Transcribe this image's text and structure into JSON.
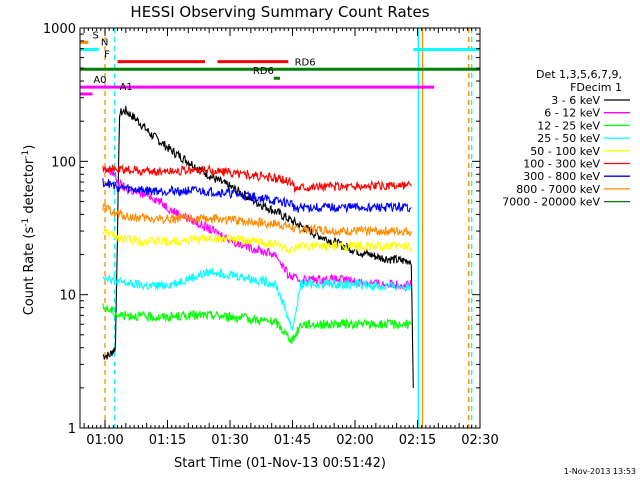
{
  "chart_data": {
    "type": "line",
    "title": "HESSI Observing Summary Count Rates",
    "xlabel": "Start Time (01-Nov-13 00:51:42)",
    "ylabel_main": "Count Rate (s",
    "ylabel_sup1": "-1",
    "ylabel_mid": " detector",
    "ylabel_sup2": "-1",
    "ylabel_end": ")",
    "yscale": "log",
    "ylim": [
      1,
      1000
    ],
    "xlim_minutes": [
      3,
      99
    ],
    "y_ticks": [
      "1",
      "10",
      "100",
      "1000"
    ],
    "x_ticks": [
      {
        "m": 9,
        "label": "01:00"
      },
      {
        "m": 24,
        "label": "01:15"
      },
      {
        "m": 39,
        "label": "01:30"
      },
      {
        "m": 54,
        "label": "01:45"
      },
      {
        "m": 69,
        "label": "02:00"
      },
      {
        "m": 84,
        "label": "02:15"
      },
      {
        "m": 99,
        "label": "02:30"
      }
    ],
    "legend_header": [
      "Det 1,3,5,6,7,9,",
      "FDecim 1"
    ],
    "series": [
      {
        "name": "3 - 6 keV",
        "color": "#000000",
        "points": [
          [
            8.5,
            3.5
          ],
          [
            10,
            3.5
          ],
          [
            11.5,
            4
          ],
          [
            12.5,
            230
          ],
          [
            14,
            240
          ],
          [
            17,
            200
          ],
          [
            20,
            160
          ],
          [
            25,
            120
          ],
          [
            30,
            95
          ],
          [
            35,
            75
          ],
          [
            40,
            62
          ],
          [
            45,
            50
          ],
          [
            50,
            42
          ],
          [
            55,
            34
          ],
          [
            60,
            28
          ],
          [
            65,
            24
          ],
          [
            70,
            21
          ],
          [
            75,
            19
          ],
          [
            80,
            18
          ],
          [
            82.5,
            18
          ],
          [
            83,
            2
          ]
        ]
      },
      {
        "name": "6 - 12 keV",
        "color": "#ff00ff",
        "points": [
          [
            8.5,
            85
          ],
          [
            11,
            82
          ],
          [
            12,
            70
          ],
          [
            14,
            62
          ],
          [
            17,
            58
          ],
          [
            20,
            55
          ],
          [
            23,
            48
          ],
          [
            25,
            43
          ],
          [
            30,
            36
          ],
          [
            35,
            30
          ],
          [
            40,
            25
          ],
          [
            45,
            22
          ],
          [
            50,
            20
          ],
          [
            53,
            14
          ],
          [
            55,
            13
          ],
          [
            60,
            13
          ],
          [
            65,
            13
          ],
          [
            70,
            12.5
          ],
          [
            75,
            12
          ],
          [
            80,
            12
          ],
          [
            82.5,
            12
          ]
        ]
      },
      {
        "name": "12 - 25 keV",
        "color": "#00ff00",
        "points": [
          [
            8.5,
            8
          ],
          [
            11,
            7.5
          ],
          [
            12,
            7
          ],
          [
            15,
            7
          ],
          [
            20,
            6.8
          ],
          [
            25,
            6.8
          ],
          [
            30,
            7
          ],
          [
            35,
            7
          ],
          [
            40,
            6.8
          ],
          [
            45,
            6.5
          ],
          [
            50,
            6.2
          ],
          [
            54,
            4.5
          ],
          [
            56,
            6
          ],
          [
            60,
            6
          ],
          [
            65,
            6
          ],
          [
            70,
            6
          ],
          [
            75,
            6
          ],
          [
            80,
            6
          ],
          [
            82.5,
            6
          ]
        ]
      },
      {
        "name": "25 - 50 keV",
        "color": "#00ffff",
        "points": [
          [
            8.5,
            14
          ],
          [
            11,
            13
          ],
          [
            12,
            12.5
          ],
          [
            15,
            12
          ],
          [
            20,
            11.5
          ],
          [
            25,
            12
          ],
          [
            30,
            13.5
          ],
          [
            35,
            15
          ],
          [
            40,
            14
          ],
          [
            45,
            13
          ],
          [
            50,
            12
          ],
          [
            54,
            5.5
          ],
          [
            56,
            12
          ],
          [
            60,
            12
          ],
          [
            65,
            12
          ],
          [
            70,
            12
          ],
          [
            75,
            11.5
          ],
          [
            80,
            11.5
          ],
          [
            82.5,
            11.5
          ]
        ]
      },
      {
        "name": "50 - 100 keV",
        "color": "#ffff00",
        "points": [
          [
            8.5,
            30
          ],
          [
            11,
            28
          ],
          [
            12,
            27
          ],
          [
            15,
            26
          ],
          [
            20,
            25
          ],
          [
            25,
            25
          ],
          [
            30,
            26
          ],
          [
            35,
            26.5
          ],
          [
            40,
            26
          ],
          [
            45,
            25
          ],
          [
            50,
            24
          ],
          [
            54,
            21
          ],
          [
            56,
            23
          ],
          [
            60,
            23
          ],
          [
            65,
            23
          ],
          [
            70,
            23
          ],
          [
            75,
            23
          ],
          [
            80,
            23
          ],
          [
            82.5,
            23
          ]
        ]
      },
      {
        "name": "100 - 300 keV",
        "color": "#ff0000",
        "points": [
          [
            8.5,
            90
          ],
          [
            11,
            87
          ],
          [
            12,
            86
          ],
          [
            15,
            86
          ],
          [
            20,
            84
          ],
          [
            25,
            85
          ],
          [
            30,
            86
          ],
          [
            35,
            85
          ],
          [
            40,
            82
          ],
          [
            45,
            78
          ],
          [
            50,
            74
          ],
          [
            54,
            70
          ],
          [
            54.5,
            63
          ],
          [
            56,
            65
          ],
          [
            60,
            65
          ],
          [
            65,
            65
          ],
          [
            70,
            65
          ],
          [
            75,
            65
          ],
          [
            80,
            65
          ],
          [
            82.5,
            65
          ]
        ]
      },
      {
        "name": "300 - 800 keV",
        "color": "#0000ff",
        "points": [
          [
            8.5,
            70
          ],
          [
            11,
            66
          ],
          [
            12,
            64
          ],
          [
            15,
            62
          ],
          [
            20,
            60
          ],
          [
            25,
            60
          ],
          [
            30,
            60
          ],
          [
            35,
            59
          ],
          [
            40,
            57
          ],
          [
            45,
            54
          ],
          [
            50,
            50
          ],
          [
            54,
            48
          ],
          [
            54.5,
            44
          ],
          [
            56,
            45
          ],
          [
            60,
            45
          ],
          [
            65,
            45
          ],
          [
            70,
            45
          ],
          [
            75,
            45
          ],
          [
            80,
            45
          ],
          [
            82.5,
            45
          ]
        ]
      },
      {
        "name": "800 - 7000 keV",
        "color": "#ff8c00",
        "points": [
          [
            8.5,
            45
          ],
          [
            11,
            42
          ],
          [
            12,
            40
          ],
          [
            15,
            38
          ],
          [
            20,
            37
          ],
          [
            25,
            37
          ],
          [
            30,
            37
          ],
          [
            35,
            37
          ],
          [
            40,
            36
          ],
          [
            45,
            35
          ],
          [
            50,
            34
          ],
          [
            54,
            32
          ],
          [
            54.5,
            30
          ],
          [
            56,
            31
          ],
          [
            60,
            31
          ],
          [
            65,
            30
          ],
          [
            70,
            30
          ],
          [
            75,
            30
          ],
          [
            80,
            30
          ],
          [
            82.5,
            30
          ]
        ]
      },
      {
        "name": "7000 - 20000 keV",
        "color": "#008000",
        "points": []
      }
    ],
    "flags": [
      {
        "label": "S",
        "color": "#ff8c00",
        "segments": [
          [
            3,
            5
          ]
        ],
        "y": 780,
        "label_at": 6
      },
      {
        "label": "N",
        "color": "#00ffff",
        "segments": [
          [
            3,
            7.5
          ],
          [
            83,
            99
          ]
        ],
        "y": 690,
        "label_at": 8
      },
      {
        "label": "F",
        "color": "#ff0000",
        "segments": [
          [
            12,
            33
          ],
          [
            36,
            53
          ]
        ],
        "y": 560,
        "label_at": 8.8
      },
      {
        "label": "RD6",
        "color": "#008000",
        "segments": [
          [
            3,
            99
          ]
        ],
        "y": 490,
        "label_at": 54.5
      },
      {
        "label": "RD6",
        "color": "#008000",
        "segments": [
          [
            49.5,
            51
          ]
        ],
        "y": 420,
        "label_at": 44.5
      },
      {
        "label": "A0",
        "color": "#ff00ff",
        "segments": [
          [
            3,
            88
          ]
        ],
        "y": 360,
        "label_at": 6.2
      },
      {
        "label": "A1",
        "color": "#ff00ff",
        "segments": [
          [
            3,
            6
          ]
        ],
        "y": 320,
        "label_at": 12.5
      }
    ],
    "vlines": [
      {
        "m": 9,
        "color": "#ff8c00",
        "dash": true
      },
      {
        "m": 11.3,
        "color": "#00ffff",
        "dash": true
      },
      {
        "m": 84.2,
        "color": "#00ffff",
        "dash": false
      },
      {
        "m": 85.2,
        "color": "#ff8c00",
        "dash": false
      },
      {
        "m": 96.3,
        "color": "#ff8c00",
        "dash": true
      },
      {
        "m": 97,
        "color": "#00ffff",
        "dash": true
      }
    ],
    "footer_date": "1-Nov-2013 13:53"
  }
}
